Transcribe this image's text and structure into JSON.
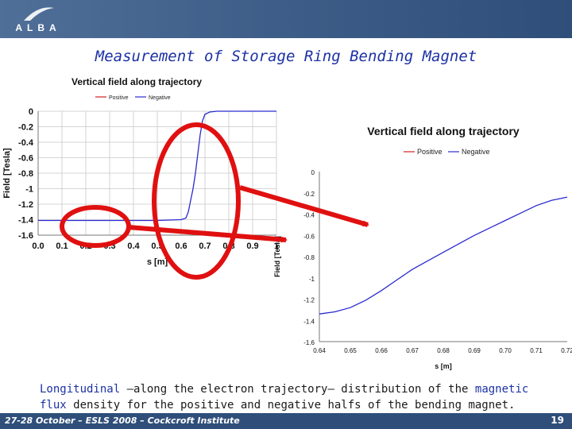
{
  "header": {
    "logo_text": "ALBA",
    "title": "Measurement of Storage Ring Bending Magnet"
  },
  "chart_data": [
    {
      "type": "line",
      "title": "Vertical field along trajectory",
      "xlabel": "s [m]",
      "ylabel": "Field [Tesla]",
      "legend": [
        "Positive",
        "Negative"
      ],
      "legend_position": "top-left",
      "x_ticks": [
        "0.0",
        "0.1",
        "0.2",
        "0.3",
        "0.4",
        "0.5",
        "0.6",
        "0.7",
        "0.8",
        "0.9",
        "1"
      ],
      "y_ticks": [
        "0",
        "-0.2",
        "-0.4",
        "-0.6",
        "-0.8",
        "-1",
        "-1.2",
        "-1.4",
        "-1.6"
      ],
      "xlim": [
        0.0,
        1.0
      ],
      "ylim": [
        -1.6,
        0
      ],
      "grid": true,
      "series": [
        {
          "name": "Negative",
          "color": "#2a2ad0",
          "x": [
            0.0,
            0.1,
            0.2,
            0.3,
            0.4,
            0.5,
            0.6,
            0.62,
            0.63,
            0.64,
            0.65,
            0.66,
            0.67,
            0.68,
            0.69,
            0.7,
            0.72,
            0.75,
            0.8,
            0.9,
            1.0
          ],
          "y": [
            -1.41,
            -1.41,
            -1.41,
            -1.41,
            -1.41,
            -1.41,
            -1.4,
            -1.38,
            -1.3,
            -1.15,
            -1.0,
            -0.8,
            -0.55,
            -0.3,
            -0.12,
            -0.04,
            -0.01,
            0.0,
            0.0,
            0.0,
            0.0
          ]
        }
      ]
    },
    {
      "type": "line",
      "title": "Vertical field along trajectory",
      "xlabel": "s [m]",
      "ylabel": "Field [Tesla]",
      "legend": [
        "Positive",
        "Negative"
      ],
      "legend_position": "top",
      "x_ticks": [
        "0.64",
        "0.65",
        "0.66",
        "0.67",
        "0.68",
        "0.69",
        "0.70",
        "0.71",
        "0.72"
      ],
      "y_ticks": [
        "0",
        "-0.2",
        "-0.4",
        "-0.6",
        "-0.8",
        "-1",
        "-1.2",
        "-1.4",
        "-1.6"
      ],
      "xlim": [
        0.64,
        0.72
      ],
      "ylim": [
        -1.6,
        0
      ],
      "grid": false,
      "series": [
        {
          "name": "Negative",
          "color": "#2a2ad0",
          "x": [
            0.64,
            0.645,
            0.65,
            0.655,
            0.66,
            0.665,
            0.67,
            0.675,
            0.68,
            0.685,
            0.69,
            0.695,
            0.7,
            0.705,
            0.71,
            0.715,
            0.72
          ],
          "y": [
            -1.34,
            -1.32,
            -1.28,
            -1.21,
            -1.12,
            -1.02,
            -0.92,
            -0.84,
            -0.76,
            -0.68,
            -0.6,
            -0.53,
            -0.46,
            -0.39,
            -0.32,
            -0.27,
            -0.24
          ]
        }
      ]
    }
  ],
  "caption": {
    "part1": "Longitudinal",
    "part2": " –along the electron trajectory– distribution of the ",
    "part3": "magnetic flux",
    "part4": " density for the positive and negative halfs of the bending magnet."
  },
  "footer": {
    "left_text": "27-28 October – ESLS 2008 – Cockcroft Institute",
    "page_number": "19"
  },
  "colors": {
    "header_bg": "#3f5f8a",
    "title": "#1c31a5",
    "annotation_red": "#e01010",
    "series_negative": "#2a2ad0",
    "series_positive": "#d02020"
  }
}
